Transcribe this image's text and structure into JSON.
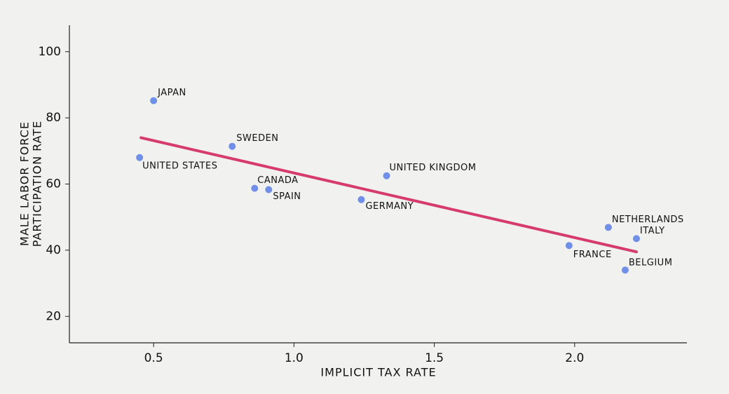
{
  "chart_data": {
    "type": "scatter",
    "xlabel": "IMPLICIT TAX RATE",
    "ylabel": [
      "MALE LABOR FORCE",
      "PARTICIPATION RATE"
    ],
    "xlim": [
      0.2,
      2.4
    ],
    "ylim": [
      12,
      108
    ],
    "xticks": [
      0.5,
      {
        "value": 1,
        "label": "1.0"
      },
      1.5,
      {
        "value": 2,
        "label": "2.0"
      }
    ],
    "yticks": [
      20,
      40,
      60,
      80,
      100
    ],
    "series": [
      {
        "color": "#6f8fe8",
        "labels": [
          "JAPAN",
          "UNITED STATES",
          "SWEDEN",
          "CANADA",
          "SPAIN",
          "UNITED KINGDOM",
          "GERMANY",
          "NETHERLANDS",
          "ITALY",
          "FRANCE",
          "BELGIUM"
        ],
        "x": [
          0.5,
          0.45,
          0.78,
          0.86,
          0.91,
          1.33,
          1.24,
          2.12,
          2.22,
          1.98,
          2.18
        ],
        "values": [
          85.2,
          68,
          71.4,
          58.7,
          58.3,
          62.5,
          55.3,
          46.9,
          43.5,
          41.4,
          34.0
        ]
      }
    ],
    "fit": {
      "color": "#d63a6e",
      "x": [
        0.455,
        2.22
      ],
      "values": [
        74,
        39.5
      ]
    }
  }
}
